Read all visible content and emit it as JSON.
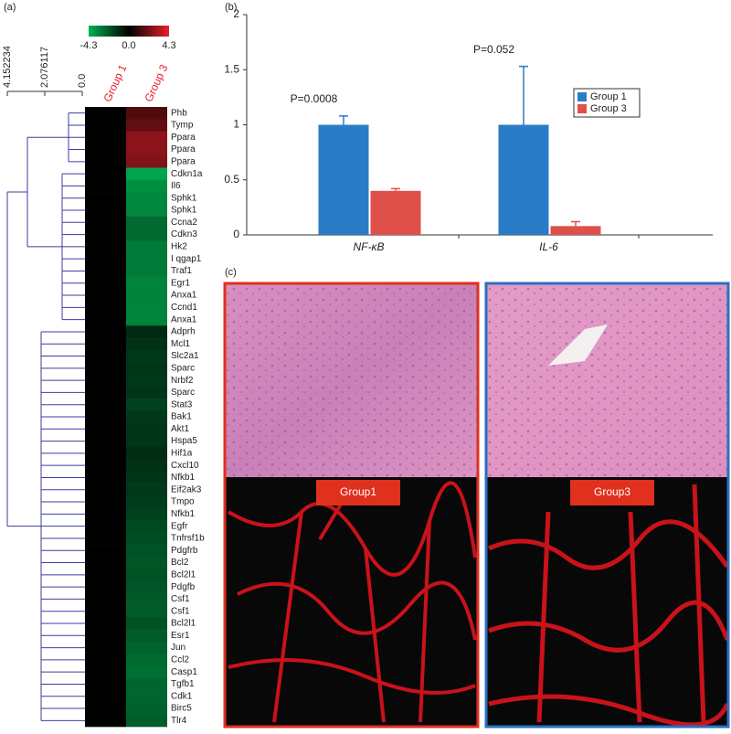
{
  "figure": {
    "panel_labels": [
      "(a)",
      "(b)",
      "(c)"
    ],
    "image_labels": [
      "Group1",
      "Group3"
    ]
  },
  "chart_data": [
    {
      "type": "heatmap",
      "columns": [
        "Group 1",
        "Group 3"
      ],
      "rows": [
        "Phb",
        "Tymp",
        "Ppara",
        "Ppara",
        "Ppara",
        "Cdkn1a",
        "Il6",
        "Sphk1",
        "Sphk1",
        "Ccna2",
        "Cdkn3",
        "Hk2",
        "I qgap1",
        "Traf1",
        "Egr1",
        "Anxa1",
        "Ccnd1",
        "Anxa1",
        "Adprh",
        "Mcl1",
        "Slc2a1",
        "Sparc",
        "Nrbf2",
        "Sparc",
        "Stat3",
        "Bak1",
        "Akt1",
        "Hspa5",
        "Hif1a",
        "Cxcl10",
        "Nfkb1",
        "Eif2ak3",
        "Tmpo",
        "Nfkb1",
        "Egfr",
        "Tnfrsf1b",
        "Pdgfrb",
        "Bcl2",
        "Bcl2l1",
        "Pdgfb",
        "Csf1",
        "Csf1",
        "Bcl2l1",
        "Esr1",
        "Jun",
        "Ccl2",
        "Casp1",
        "Tgfb1",
        "Cdk1",
        "Birc5",
        "Tlr4"
      ],
      "values": [
        [
          0,
          1.5
        ],
        [
          0,
          1.8
        ],
        [
          0,
          2.6
        ],
        [
          0,
          2.6
        ],
        [
          0,
          2.4
        ],
        [
          0,
          -4.0
        ],
        [
          0,
          -3.5
        ],
        [
          0,
          -3.3
        ],
        [
          0,
          -3.3
        ],
        [
          0,
          -2.6
        ],
        [
          0,
          -2.6
        ],
        [
          0,
          -3.0
        ],
        [
          0,
          -3.0
        ],
        [
          0,
          -3.0
        ],
        [
          0,
          -3.2
        ],
        [
          0,
          -3.2
        ],
        [
          0,
          -3.2
        ],
        [
          0,
          -3.2
        ],
        [
          0,
          -1.0
        ],
        [
          0,
          -1.2
        ],
        [
          0,
          -1.4
        ],
        [
          0,
          -1.3
        ],
        [
          0,
          -1.4
        ],
        [
          0,
          -1.3
        ],
        [
          0,
          -1.6
        ],
        [
          0,
          -1.4
        ],
        [
          0,
          -1.3
        ],
        [
          0,
          -1.3
        ],
        [
          0,
          -1.1
        ],
        [
          0,
          -1.2
        ],
        [
          0,
          -1.3
        ],
        [
          0,
          -1.4
        ],
        [
          0,
          -1.5
        ],
        [
          0,
          -1.6
        ],
        [
          0,
          -1.8
        ],
        [
          0,
          -1.9
        ],
        [
          0,
          -2.0
        ],
        [
          0,
          -2.1
        ],
        [
          0,
          -2.0
        ],
        [
          0,
          -2.1
        ],
        [
          0,
          -2.2
        ],
        [
          0,
          -2.2
        ],
        [
          0,
          -2.0
        ],
        [
          0,
          -2.2
        ],
        [
          0,
          -2.4
        ],
        [
          0,
          -2.6
        ],
        [
          0,
          -2.7
        ],
        [
          0,
          -2.5
        ],
        [
          0,
          -2.5
        ],
        [
          0,
          -2.4
        ],
        [
          0,
          -2.3
        ]
      ],
      "colorbar": {
        "lim": [
          -4.3,
          4.3
        ],
        "ticks": [
          -4.3,
          {
            "value": 0,
            "label": "0.0"
          },
          4.3
        ],
        "colors": [
          "#00b050",
          "#000000",
          "#e8202a"
        ]
      },
      "column_label_color": "#e8202a",
      "xlim": [
        4.152234,
        0
      ],
      "xticks": [
        4.152234,
        2.076117,
        {
          "value": 0,
          "label": "0.0"
        }
      ],
      "dendrogram_color": "#3c3ca0"
    },
    {
      "type": "bar",
      "categories": [
        "NF-κB",
        "IL-6"
      ],
      "series": [
        {
          "name": "Group 1",
          "color": "#2a7cc7",
          "values": [
            1.0,
            1.0
          ],
          "errors": [
            0.08,
            0.53
          ]
        },
        {
          "name": "Group 3",
          "color": "#e0504a",
          "values": [
            0.4,
            0.08
          ],
          "errors": [
            0.02,
            0.04
          ]
        }
      ],
      "annotations": [
        "P=0.0008",
        "P=0.052"
      ],
      "ylim": [
        0,
        2
      ],
      "yticks": [
        0,
        0.5,
        1,
        1.5,
        2
      ],
      "legend": "upper right"
    }
  ]
}
